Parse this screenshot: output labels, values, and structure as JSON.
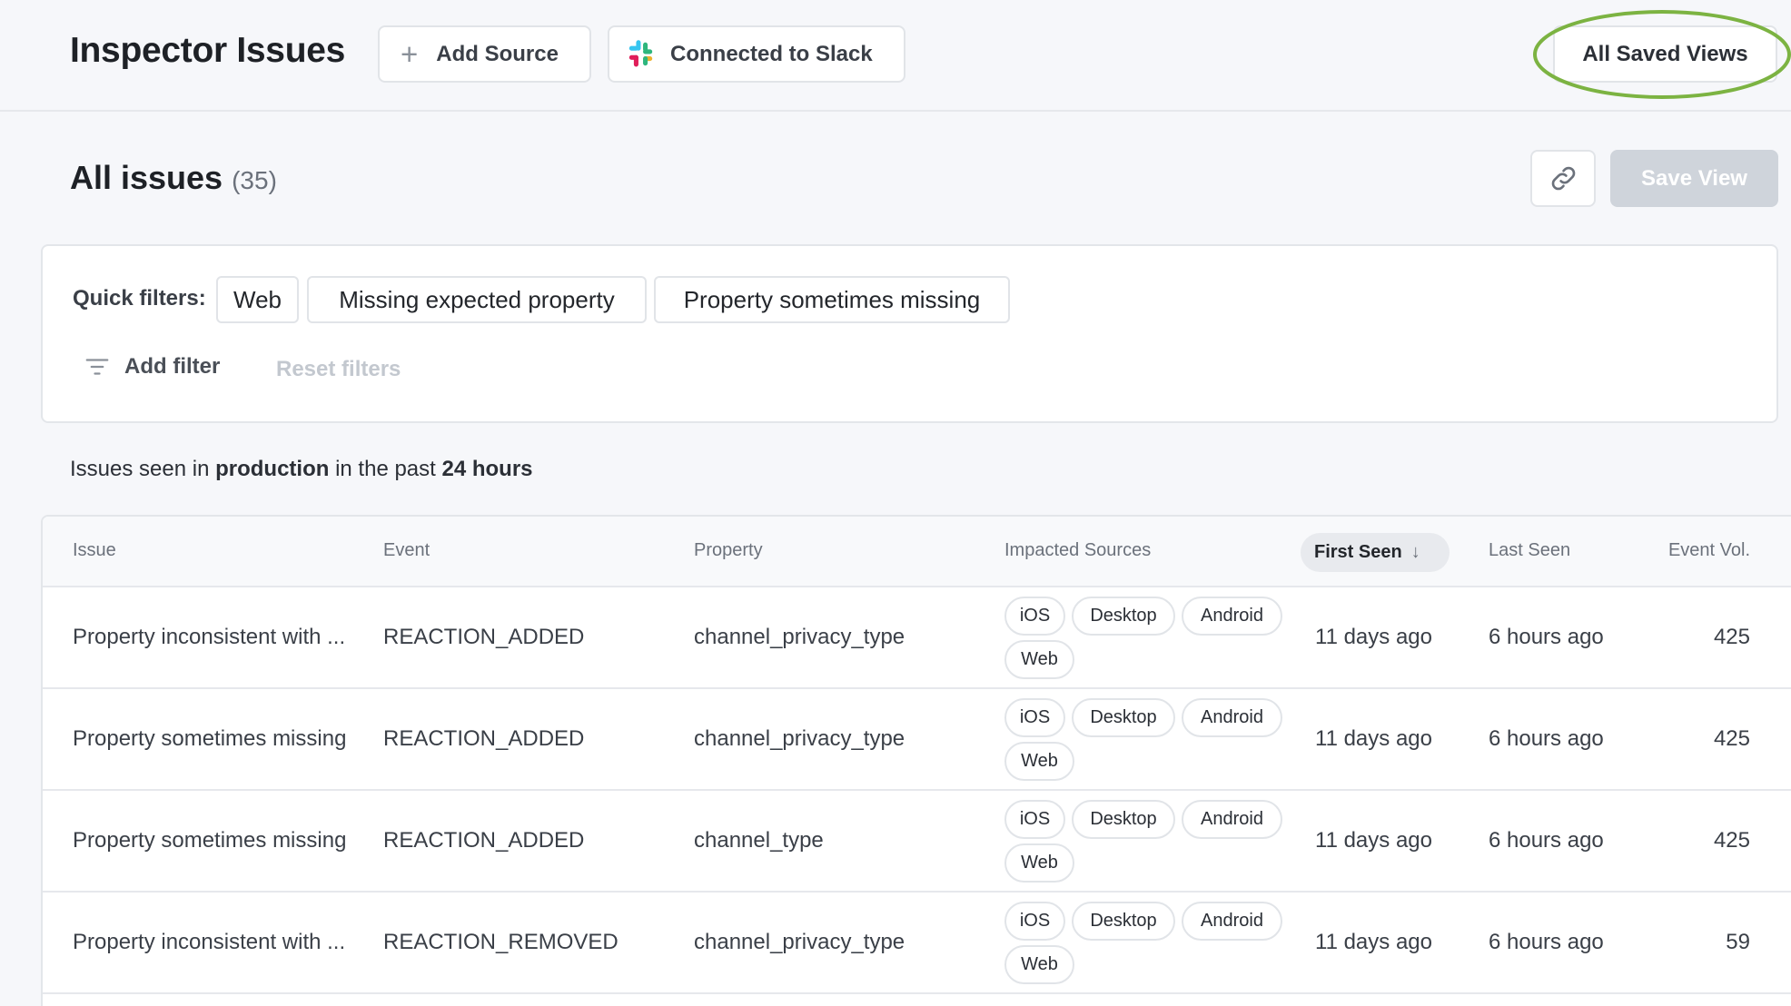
{
  "header": {
    "title": "Inspector Issues",
    "add_source": "Add Source",
    "slack": "Connected to Slack",
    "saved_views": "All Saved Views",
    "annotation_color": "#7cb342"
  },
  "issues": {
    "title": "All issues",
    "count": "(35)",
    "save_view": "Save View"
  },
  "filters": {
    "label": "Quick filters:",
    "quick": [
      "Web",
      "Missing expected property",
      "Property sometimes missing"
    ],
    "add_filter": "Add filter",
    "reset": "Reset filters"
  },
  "summary": {
    "pre": "Issues seen in ",
    "env": "production",
    "mid": " in the past ",
    "period": "24 hours"
  },
  "table": {
    "columns": [
      "Issue",
      "Event",
      "Property",
      "Impacted Sources",
      "First Seen",
      "Last Seen",
      "Event Vol."
    ],
    "sorted_column": "First Seen",
    "sort_direction": "descending",
    "rows": [
      {
        "issue": "Property inconsistent with ...",
        "event": "REACTION_ADDED",
        "property": "channel_privacy_type",
        "sources": [
          "iOS",
          "Desktop",
          "Android",
          "Web"
        ],
        "first_seen": "11 days ago",
        "last_seen": "6 hours ago",
        "volume": "425"
      },
      {
        "issue": "Property sometimes missing",
        "event": "REACTION_ADDED",
        "property": "channel_privacy_type",
        "sources": [
          "iOS",
          "Desktop",
          "Android",
          "Web"
        ],
        "first_seen": "11 days ago",
        "last_seen": "6 hours ago",
        "volume": "425"
      },
      {
        "issue": "Property sometimes missing",
        "event": "REACTION_ADDED",
        "property": "channel_type",
        "sources": [
          "iOS",
          "Desktop",
          "Android",
          "Web"
        ],
        "first_seen": "11 days ago",
        "last_seen": "6 hours ago",
        "volume": "425"
      },
      {
        "issue": "Property inconsistent with ...",
        "event": "REACTION_REMOVED",
        "property": "channel_privacy_type",
        "sources": [
          "iOS",
          "Desktop",
          "Android",
          "Web"
        ],
        "first_seen": "11 days ago",
        "last_seen": "6 hours ago",
        "volume": "59"
      }
    ]
  }
}
